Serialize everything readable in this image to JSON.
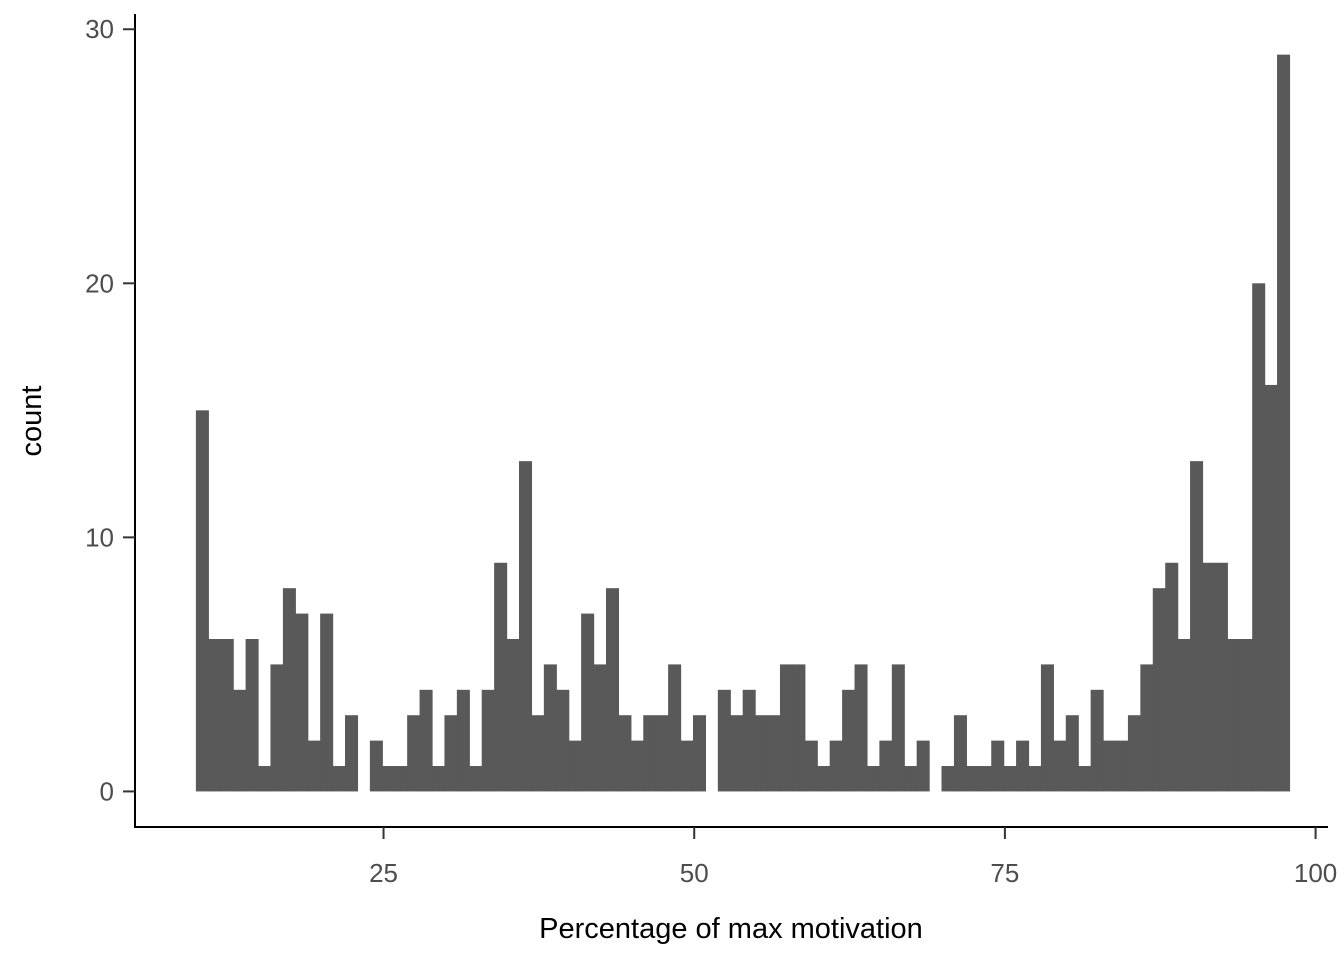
{
  "chart_data": {
    "type": "histogram",
    "xlabel": "Percentage of max motivation",
    "ylabel": "count",
    "xlim": [
      5,
      101
    ],
    "ylim": [
      -1.4,
      30.6
    ],
    "x_ticks": [
      25,
      50,
      75,
      100
    ],
    "y_ticks": [
      0,
      10,
      20,
      30
    ],
    "grid": false,
    "legend": "none",
    "bar_color": "#595959",
    "bin_start": 9.9,
    "bin_width": 1.0,
    "counts": [
      15,
      6,
      6,
      4,
      6,
      1,
      5,
      8,
      7,
      2,
      7,
      1,
      3,
      0,
      2,
      1,
      1,
      3,
      4,
      1,
      3,
      4,
      1,
      4,
      9,
      6,
      13,
      3,
      5,
      4,
      2,
      7,
      5,
      8,
      3,
      2,
      3,
      3,
      5,
      2,
      3,
      0,
      4,
      3,
      4,
      3,
      3,
      5,
      5,
      2,
      1,
      2,
      4,
      5,
      1,
      2,
      5,
      1,
      2,
      0,
      1,
      3,
      1,
      1,
      2,
      1,
      2,
      1,
      5,
      2,
      3,
      1,
      4,
      2,
      2,
      3,
      5,
      8,
      9,
      6,
      13,
      9,
      9,
      6,
      6,
      20,
      16,
      29
    ]
  }
}
